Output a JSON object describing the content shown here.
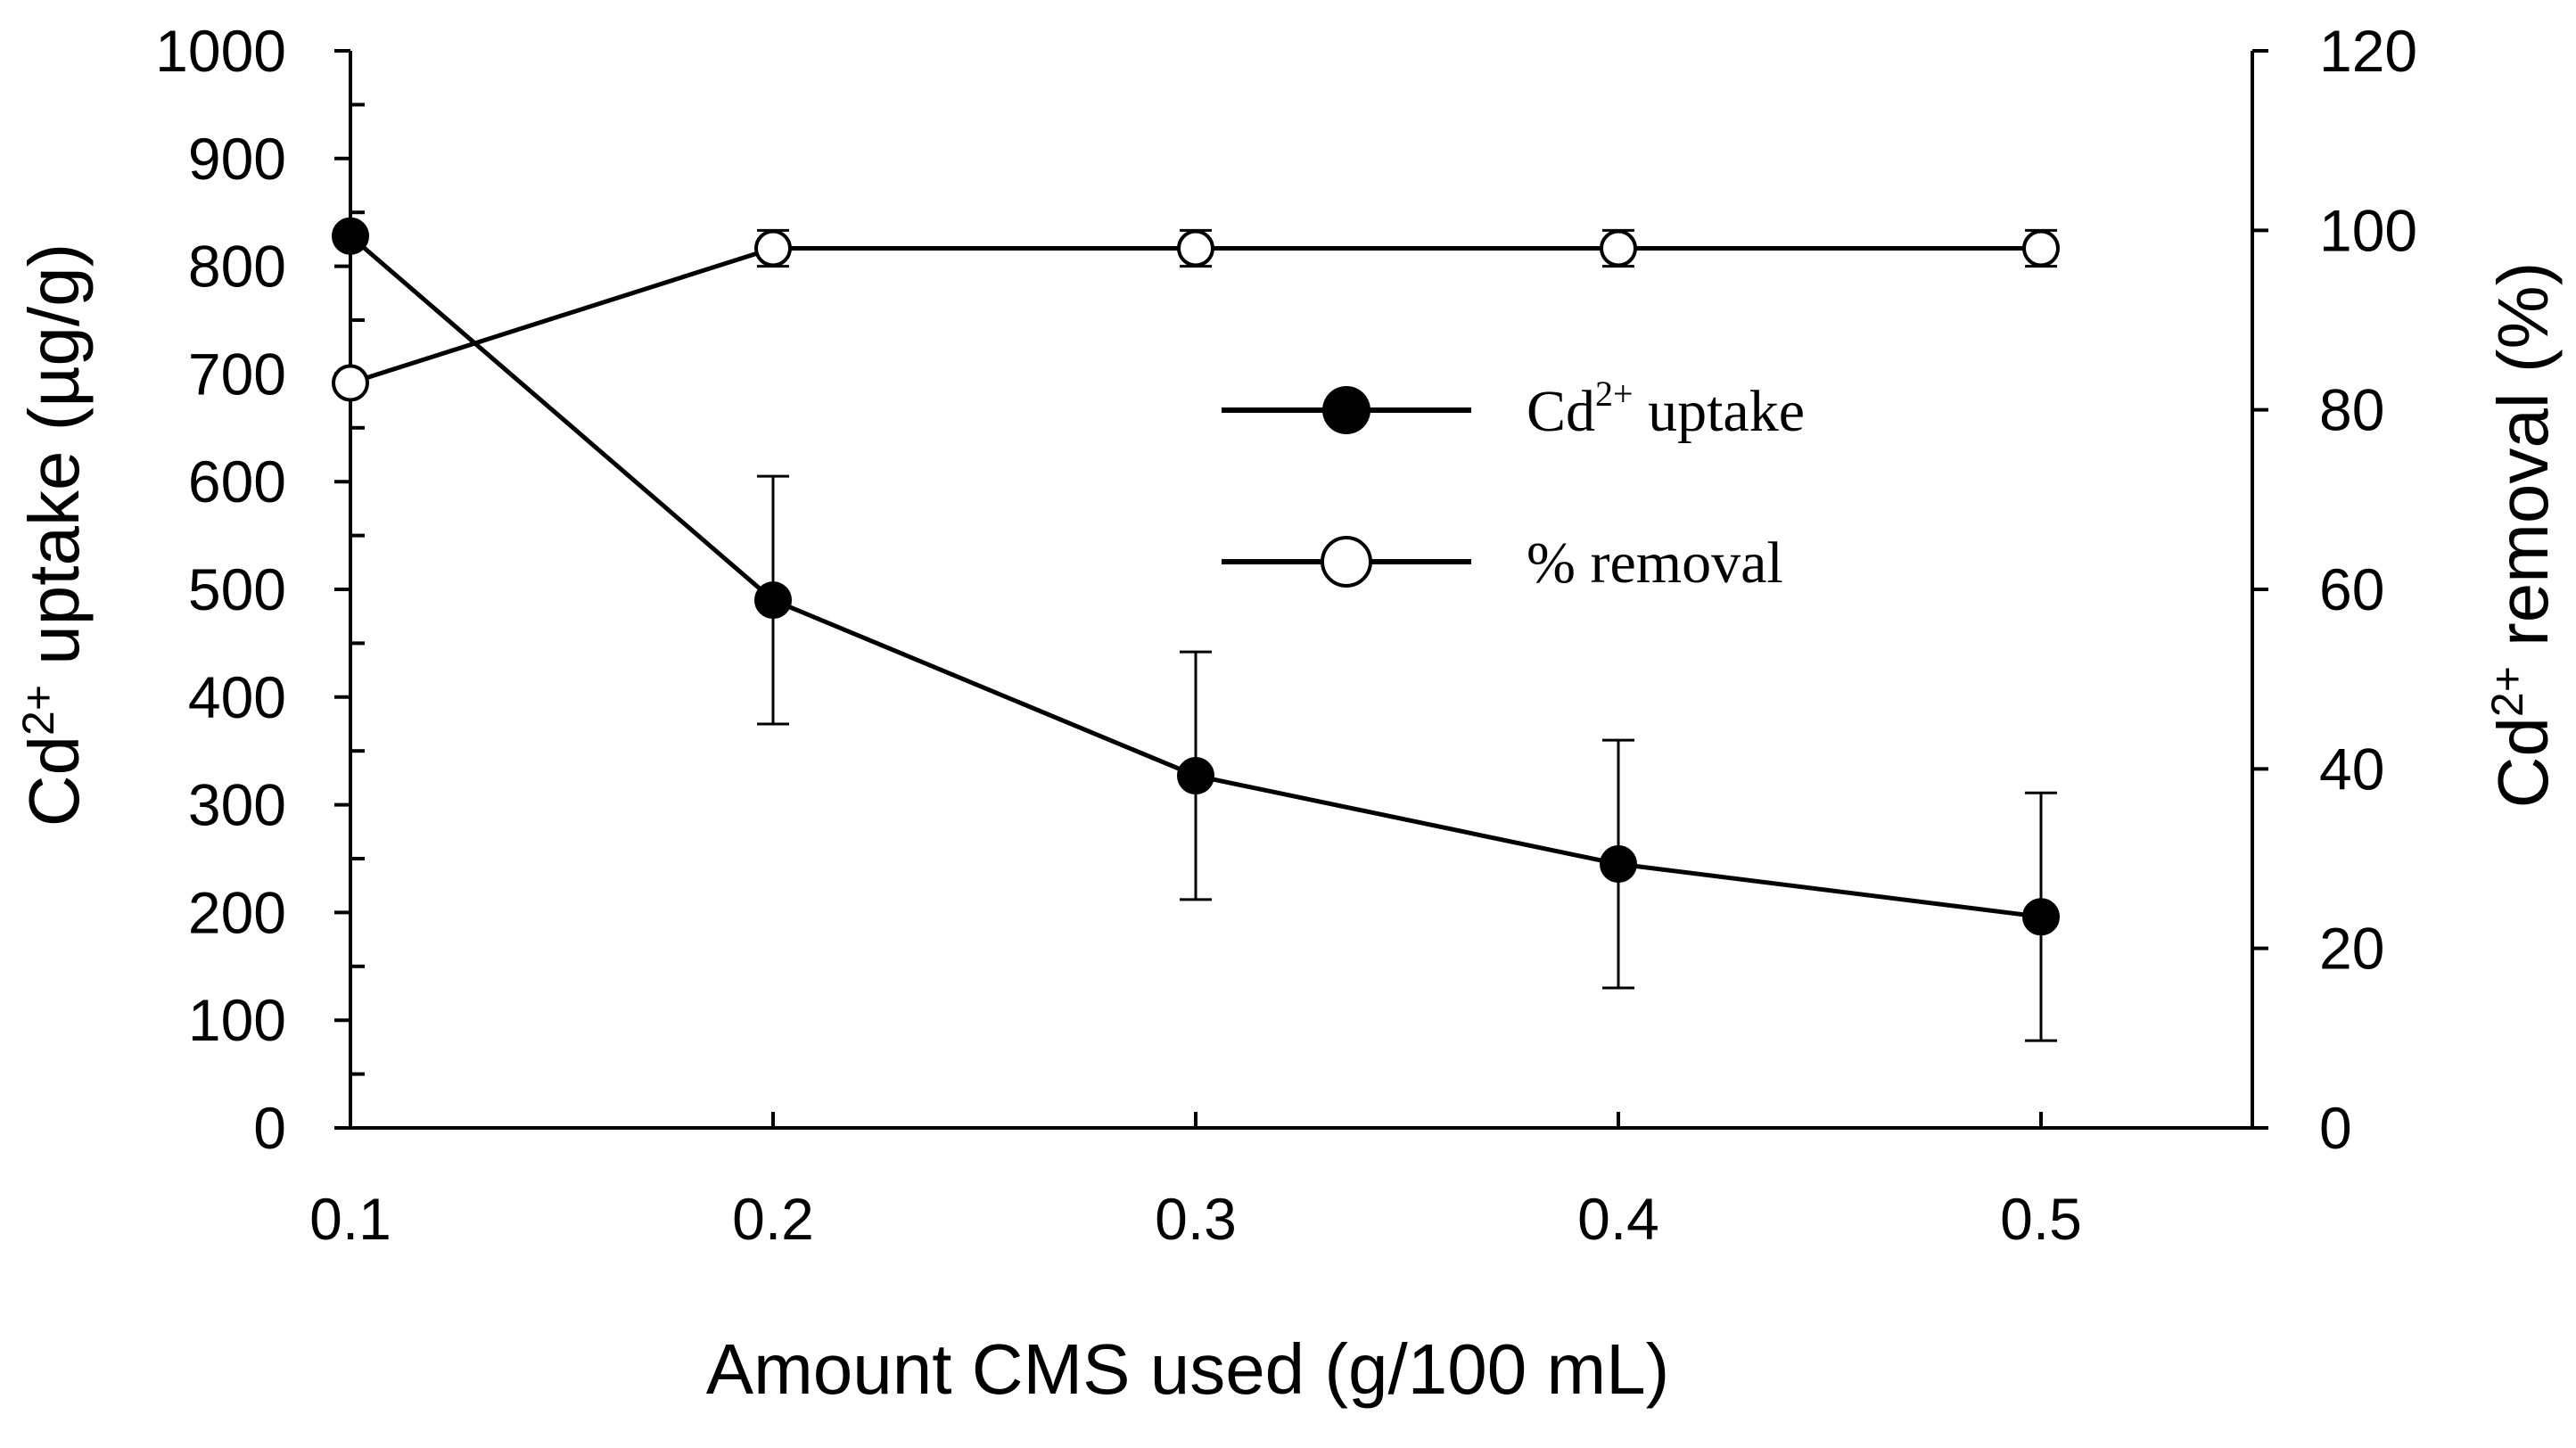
{
  "chart_data": {
    "type": "line",
    "title": "",
    "x": [
      0.1,
      0.2,
      0.3,
      0.4,
      0.5
    ],
    "x_tick_labels": [
      "0.1",
      "0.2",
      "0.3",
      "0.4",
      "0.5"
    ],
    "xlim": [
      0.1,
      0.55
    ],
    "xlabel": "Amount CMS used (g/100 mL)",
    "ylabel": {
      "base": "Cd",
      "sup": "2+",
      "rest": " uptake (µg/g)"
    },
    "ylim": [
      0,
      1000
    ],
    "y_tick_labels": [
      "0",
      "100",
      "200",
      "300",
      "400",
      "500",
      "600",
      "700",
      "800",
      "900",
      "1000"
    ],
    "y2label": {
      "base": "Cd",
      "sup": "2+",
      "rest": " removal (%)"
    },
    "y2lim": [
      0,
      120
    ],
    "y2_tick_labels": [
      "0",
      "20",
      "40",
      "60",
      "80",
      "100",
      "120"
    ],
    "grid": false,
    "legend_position": "center-right",
    "series": [
      {
        "name": "Cd2+ uptake",
        "legend": {
          "base": "Cd",
          "sup": "2+",
          "rest": " uptake"
        },
        "axis": "left",
        "marker": "filled-circle",
        "values": [
          828,
          490,
          327,
          245,
          196
        ],
        "errors": [
          0,
          115,
          115,
          115,
          115
        ]
      },
      {
        "name": "% removal",
        "legend": {
          "base": "% removal",
          "sup": "",
          "rest": ""
        },
        "axis": "right",
        "marker": "open-circle",
        "values": [
          83,
          98,
          98,
          98,
          98
        ],
        "errors": [
          0,
          2,
          2,
          2,
          2
        ]
      }
    ]
  }
}
